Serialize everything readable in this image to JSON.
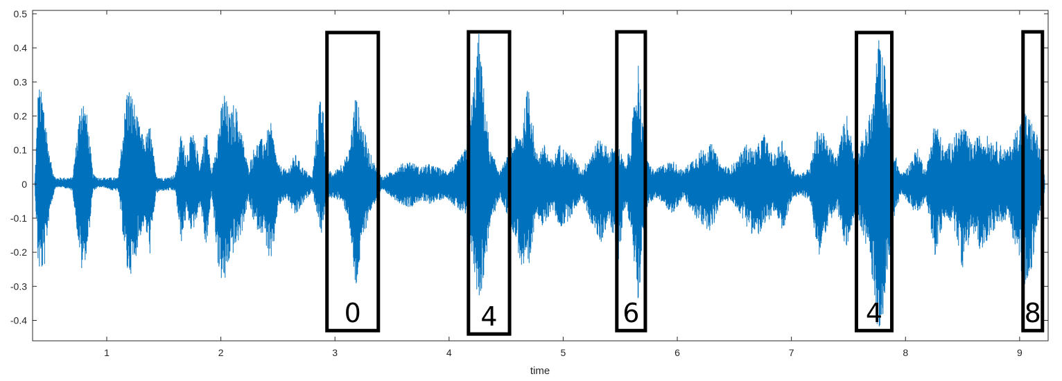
{
  "chart_data": {
    "type": "line",
    "title": "",
    "xlabel": "time",
    "ylabel": "",
    "xlim": [
      0.35,
      9.25
    ],
    "ylim": [
      -0.46,
      0.51
    ],
    "x_ticks": [
      1,
      2,
      3,
      4,
      5,
      6,
      7,
      8,
      9
    ],
    "y_ticks": [
      -0.4,
      -0.3,
      -0.2,
      -0.1,
      0,
      0.1,
      0.2,
      0.3,
      0.4,
      0.5
    ],
    "grid": false,
    "legend": "none",
    "series_color": "#0072BD",
    "series": [
      {
        "x": [
          0.37,
          0.4,
          0.45,
          0.5,
          0.55,
          0.62,
          0.7,
          0.78,
          0.83,
          0.88,
          0.93,
          0.98,
          1.05,
          1.1,
          1.18,
          1.23,
          1.28,
          1.33,
          1.38,
          1.43,
          1.48,
          1.53,
          1.6,
          1.65,
          1.7,
          1.75,
          1.82,
          1.87,
          1.92,
          1.98,
          2.03,
          2.08,
          2.12,
          2.18,
          2.24,
          2.3,
          2.38,
          2.44,
          2.5,
          2.58,
          2.65,
          2.72,
          2.8,
          2.88,
          2.93,
          2.98,
          3.05,
          3.12,
          3.18,
          3.24,
          3.3,
          3.36,
          3.42,
          3.5,
          3.58,
          3.66,
          3.74,
          3.82,
          3.9,
          3.98,
          4.06,
          4.15,
          4.2,
          4.26,
          4.3,
          4.36,
          4.45,
          4.52,
          4.58,
          4.64,
          4.7,
          4.76,
          4.83,
          4.9,
          4.97,
          5.02,
          5.08,
          5.16,
          5.25,
          5.33,
          5.4,
          5.48,
          5.55,
          5.6,
          5.66,
          5.72,
          5.8,
          5.88,
          5.96,
          6.05,
          6.12,
          6.2,
          6.3,
          6.38,
          6.45,
          6.52,
          6.6,
          6.68,
          6.76,
          6.84,
          6.92,
          7.0,
          7.08,
          7.16,
          7.24,
          7.32,
          7.4,
          7.48,
          7.56,
          7.64,
          7.72,
          7.76,
          7.82,
          7.9,
          7.96,
          8.02,
          8.1,
          8.18,
          8.26,
          8.34,
          8.42,
          8.5,
          8.58,
          8.66,
          8.74,
          8.82,
          8.9,
          8.98,
          9.04,
          9.1,
          9.16,
          9.22
        ],
        "upper": [
          0.01,
          0.3,
          0.25,
          0.08,
          0.02,
          0.02,
          0.02,
          0.28,
          0.2,
          0.03,
          0.02,
          0.02,
          0.02,
          0.02,
          0.3,
          0.26,
          0.18,
          0.13,
          0.18,
          0.03,
          0.02,
          0.02,
          0.03,
          0.15,
          0.09,
          0.16,
          0.06,
          0.18,
          0.03,
          0.18,
          0.28,
          0.2,
          0.25,
          0.16,
          0.05,
          0.12,
          0.14,
          0.18,
          0.06,
          0.04,
          0.09,
          0.05,
          0.02,
          0.31,
          0.05,
          0.03,
          0.06,
          0.09,
          0.27,
          0.18,
          0.1,
          0.05,
          0.02,
          0.04,
          0.06,
          0.07,
          0.05,
          0.06,
          0.05,
          0.04,
          0.06,
          0.11,
          0.25,
          0.45,
          0.3,
          0.1,
          0.04,
          0.09,
          0.14,
          0.17,
          0.32,
          0.09,
          0.12,
          0.07,
          0.12,
          0.1,
          0.09,
          0.04,
          0.1,
          0.14,
          0.1,
          0.12,
          0.05,
          0.16,
          0.38,
          0.08,
          0.04,
          0.06,
          0.07,
          0.04,
          0.07,
          0.1,
          0.12,
          0.06,
          0.05,
          0.07,
          0.12,
          0.1,
          0.15,
          0.08,
          0.14,
          0.05,
          0.03,
          0.05,
          0.18,
          0.12,
          0.08,
          0.22,
          0.08,
          0.15,
          0.25,
          0.44,
          0.35,
          0.1,
          0.03,
          0.05,
          0.11,
          0.04,
          0.2,
          0.1,
          0.14,
          0.18,
          0.12,
          0.15,
          0.14,
          0.12,
          0.1,
          0.17,
          0.22,
          0.19,
          0.14,
          0.02
        ],
        "lower": [
          -0.01,
          -0.26,
          -0.26,
          -0.08,
          -0.01,
          -0.01,
          -0.02,
          -0.26,
          -0.2,
          -0.02,
          -0.01,
          -0.01,
          -0.02,
          -0.02,
          -0.27,
          -0.26,
          -0.17,
          -0.12,
          -0.21,
          -0.03,
          -0.02,
          -0.02,
          -0.02,
          -0.18,
          -0.09,
          -0.15,
          -0.06,
          -0.2,
          -0.03,
          -0.26,
          -0.31,
          -0.22,
          -0.2,
          -0.15,
          -0.05,
          -0.13,
          -0.15,
          -0.26,
          -0.07,
          -0.04,
          -0.1,
          -0.06,
          -0.02,
          -0.15,
          -0.05,
          -0.04,
          -0.05,
          -0.1,
          -0.33,
          -0.18,
          -0.09,
          -0.05,
          -0.02,
          -0.04,
          -0.06,
          -0.07,
          -0.05,
          -0.06,
          -0.05,
          -0.04,
          -0.07,
          -0.1,
          -0.22,
          -0.35,
          -0.29,
          -0.12,
          -0.04,
          -0.1,
          -0.16,
          -0.26,
          -0.28,
          -0.08,
          -0.14,
          -0.07,
          -0.13,
          -0.12,
          -0.09,
          -0.04,
          -0.12,
          -0.18,
          -0.1,
          -0.24,
          -0.05,
          -0.16,
          -0.35,
          -0.08,
          -0.04,
          -0.06,
          -0.09,
          -0.04,
          -0.08,
          -0.12,
          -0.14,
          -0.06,
          -0.05,
          -0.07,
          -0.12,
          -0.16,
          -0.14,
          -0.08,
          -0.15,
          -0.05,
          -0.03,
          -0.05,
          -0.22,
          -0.12,
          -0.08,
          -0.2,
          -0.08,
          -0.16,
          -0.3,
          -0.46,
          -0.35,
          -0.1,
          -0.03,
          -0.05,
          -0.1,
          -0.04,
          -0.22,
          -0.1,
          -0.12,
          -0.25,
          -0.14,
          -0.2,
          -0.15,
          -0.12,
          -0.1,
          -0.22,
          -0.3,
          -0.26,
          -0.12,
          -0.02
        ]
      }
    ],
    "annotations": [
      {
        "label": "0",
        "x0": 2.93,
        "x1": 3.38,
        "y0": -0.43,
        "y1": 0.445
      },
      {
        "label": "4",
        "x0": 4.17,
        "x1": 4.53,
        "y0": -0.44,
        "y1": 0.447
      },
      {
        "label": "6",
        "x0": 5.47,
        "x1": 5.72,
        "y0": -0.43,
        "y1": 0.447
      },
      {
        "label": "4",
        "x0": 7.57,
        "x1": 7.88,
        "y0": -0.43,
        "y1": 0.445
      },
      {
        "label": "8",
        "x0": 9.03,
        "x1": 9.2,
        "y0": -0.43,
        "y1": 0.447
      }
    ]
  }
}
